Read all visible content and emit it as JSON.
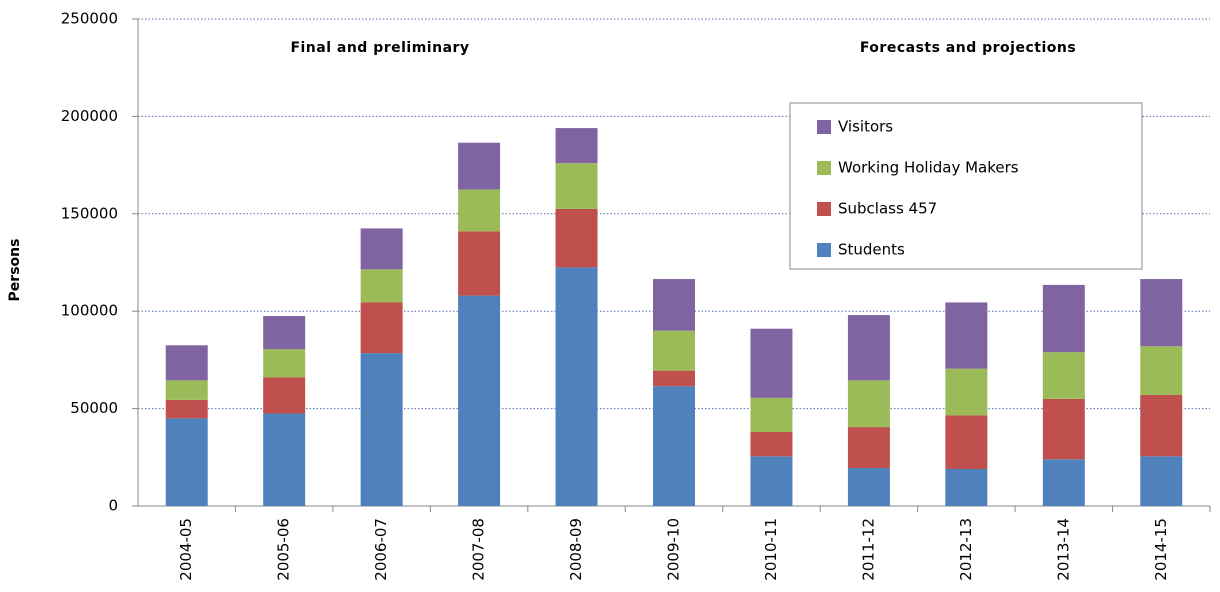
{
  "chart_data": {
    "type": "stacked_bar",
    "y_label": "Persons",
    "annotations": [
      "Final and preliminary",
      "Forecasts and projections"
    ],
    "categories": [
      "2004-05",
      "2005-06",
      "2006-07",
      "2007-08",
      "2008-09",
      "2009-10",
      "2010-11",
      "2011-12",
      "2012-13",
      "2013-14",
      "2014-15"
    ],
    "series": [
      {
        "name": "Students",
        "color": "#4f81bd",
        "values": [
          45000,
          47500,
          78500,
          108000,
          122500,
          61500,
          25500,
          19500,
          19000,
          24000,
          25500
        ]
      },
      {
        "name": "Subclass 457",
        "color": "#c0504d",
        "values": [
          9500,
          18500,
          26000,
          33000,
          30000,
          8000,
          12500,
          21000,
          27500,
          31000,
          31500
        ]
      },
      {
        "name": "Working Holiday Makers",
        "color": "#9bbb59",
        "values": [
          10000,
          14500,
          17000,
          21500,
          23500,
          20500,
          17500,
          24000,
          24000,
          24000,
          25000
        ]
      },
      {
        "name": "Visitors",
        "color": "#8064a2",
        "values": [
          18000,
          17000,
          21000,
          24000,
          18000,
          26500,
          35500,
          33500,
          34000,
          34500,
          34500
        ]
      }
    ],
    "ylim": [
      0,
      250000
    ],
    "yticks": [
      0,
      50000,
      100000,
      150000,
      200000,
      250000
    ],
    "grid": true,
    "legend": "upper-right"
  }
}
